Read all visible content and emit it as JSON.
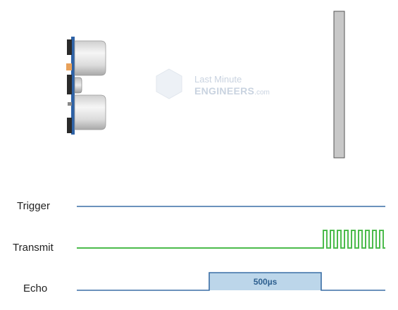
{
  "watermark": {
    "line1": "Last Minute",
    "line2": "ENGINEERS",
    "suffix": ".com"
  },
  "signals": [
    {
      "id": "trigger",
      "label": "Trigger"
    },
    {
      "id": "transmit",
      "label": "Transmit"
    },
    {
      "id": "echo",
      "label": "Echo"
    }
  ],
  "echo_pulse": {
    "label": "500µs"
  },
  "colors": {
    "trigger_line": "#3a6ea5",
    "transmit_line": "#4cbb4c",
    "echo_line": "#3a6ea5",
    "echo_fill": "#bcd6ea",
    "sensor_board": "#2e62a6",
    "transducer": "#d8d8d8",
    "obstacle": "#c8c8c8"
  }
}
